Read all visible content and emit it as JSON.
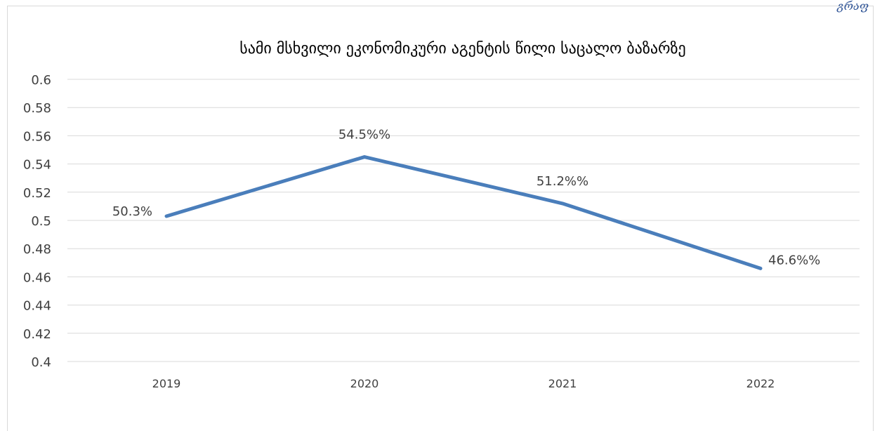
{
  "corner_note": "გრაფ",
  "chart_data": {
    "type": "line",
    "title": "სამი მსხვილი ეკონომიკური აგენტის წილი საცალო ბაზარზე",
    "xlabel": "",
    "ylabel": "",
    "categories": [
      "2019",
      "2020",
      "2021",
      "2022"
    ],
    "series": [
      {
        "values": [
          0.503,
          0.545,
          0.512,
          0.466
        ],
        "color": "#4a7ebb"
      }
    ],
    "data_labels": [
      "50.3%",
      "54.5%%",
      "51.2%%",
      "46.6%%"
    ],
    "ylim": [
      0.4,
      0.6
    ],
    "yticks": [
      "0.6",
      "0.58",
      "0.56",
      "0.54",
      "0.52",
      "0.5",
      "0.48",
      "0.46",
      "0.44",
      "0.42",
      "0.4"
    ],
    "grid": true,
    "legend": "none",
    "gridline_color": "#d9d9d9",
    "text_color": "#404040"
  }
}
